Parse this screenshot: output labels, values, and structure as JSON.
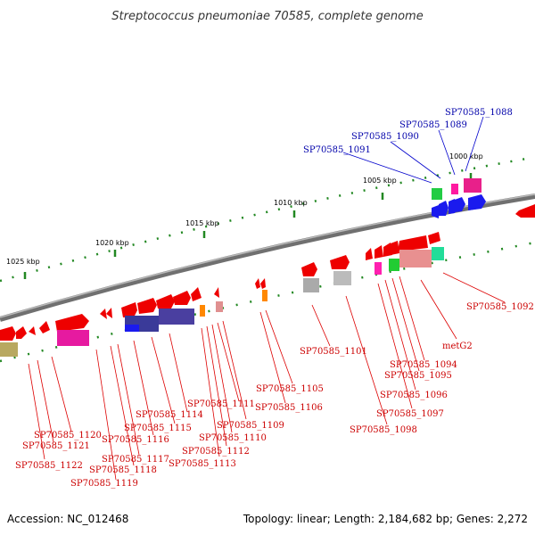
{
  "title": "Streptococcus pneumoniae 70585, complete genome",
  "footer": {
    "accession": "Accession: NC_012468",
    "summary": "Topology: linear; Length: 2,184,682 bp; Genes: 2,272"
  },
  "scale_labels": [
    "1000 kbp",
    "1005 kbp",
    "1010 kbp",
    "1015 kbp",
    "1020 kbp",
    "1025 kbp"
  ],
  "gene_labels": [
    {
      "text": "SP70585_1088",
      "color": "blue"
    },
    {
      "text": "SP70585_1089",
      "color": "blue"
    },
    {
      "text": "SP70585_1090",
      "color": "blue"
    },
    {
      "text": "SP70585_1091",
      "color": "blue"
    },
    {
      "text": "SP70585_1092",
      "color": "red"
    },
    {
      "text": "metG2",
      "color": "red"
    },
    {
      "text": "SP70585_1094",
      "color": "red"
    },
    {
      "text": "SP70585_1095",
      "color": "red"
    },
    {
      "text": "SP70585_1096",
      "color": "red"
    },
    {
      "text": "SP70585_1097",
      "color": "red"
    },
    {
      "text": "SP70585_1098",
      "color": "red"
    },
    {
      "text": "SP70585_1101",
      "color": "red"
    },
    {
      "text": "SP70585_1105",
      "color": "red"
    },
    {
      "text": "SP70585_1106",
      "color": "red"
    },
    {
      "text": "SP70585_1109",
      "color": "red"
    },
    {
      "text": "SP70585_1110",
      "color": "red"
    },
    {
      "text": "SP70585_1111",
      "color": "red"
    },
    {
      "text": "SP70585_1112",
      "color": "red"
    },
    {
      "text": "SP70585_1113",
      "color": "red"
    },
    {
      "text": "SP70585_1114",
      "color": "red"
    },
    {
      "text": "SP70585_1115",
      "color": "red"
    },
    {
      "text": "SP70585_1116",
      "color": "red"
    },
    {
      "text": "SP70585_1117",
      "color": "red"
    },
    {
      "text": "SP70585_1118",
      "color": "red"
    },
    {
      "text": "SP70585_1119",
      "color": "red"
    },
    {
      "text": "SP70585_1120",
      "color": "red"
    },
    {
      "text": "SP70585_1121",
      "color": "red"
    },
    {
      "text": "SP70585_1122",
      "color": "red"
    }
  ],
  "colors": {
    "gene_forward": "#ee0000",
    "label_red": "#cc0000",
    "label_blue": "#0000aa",
    "backbone": "#808080",
    "tick": "#228822"
  }
}
